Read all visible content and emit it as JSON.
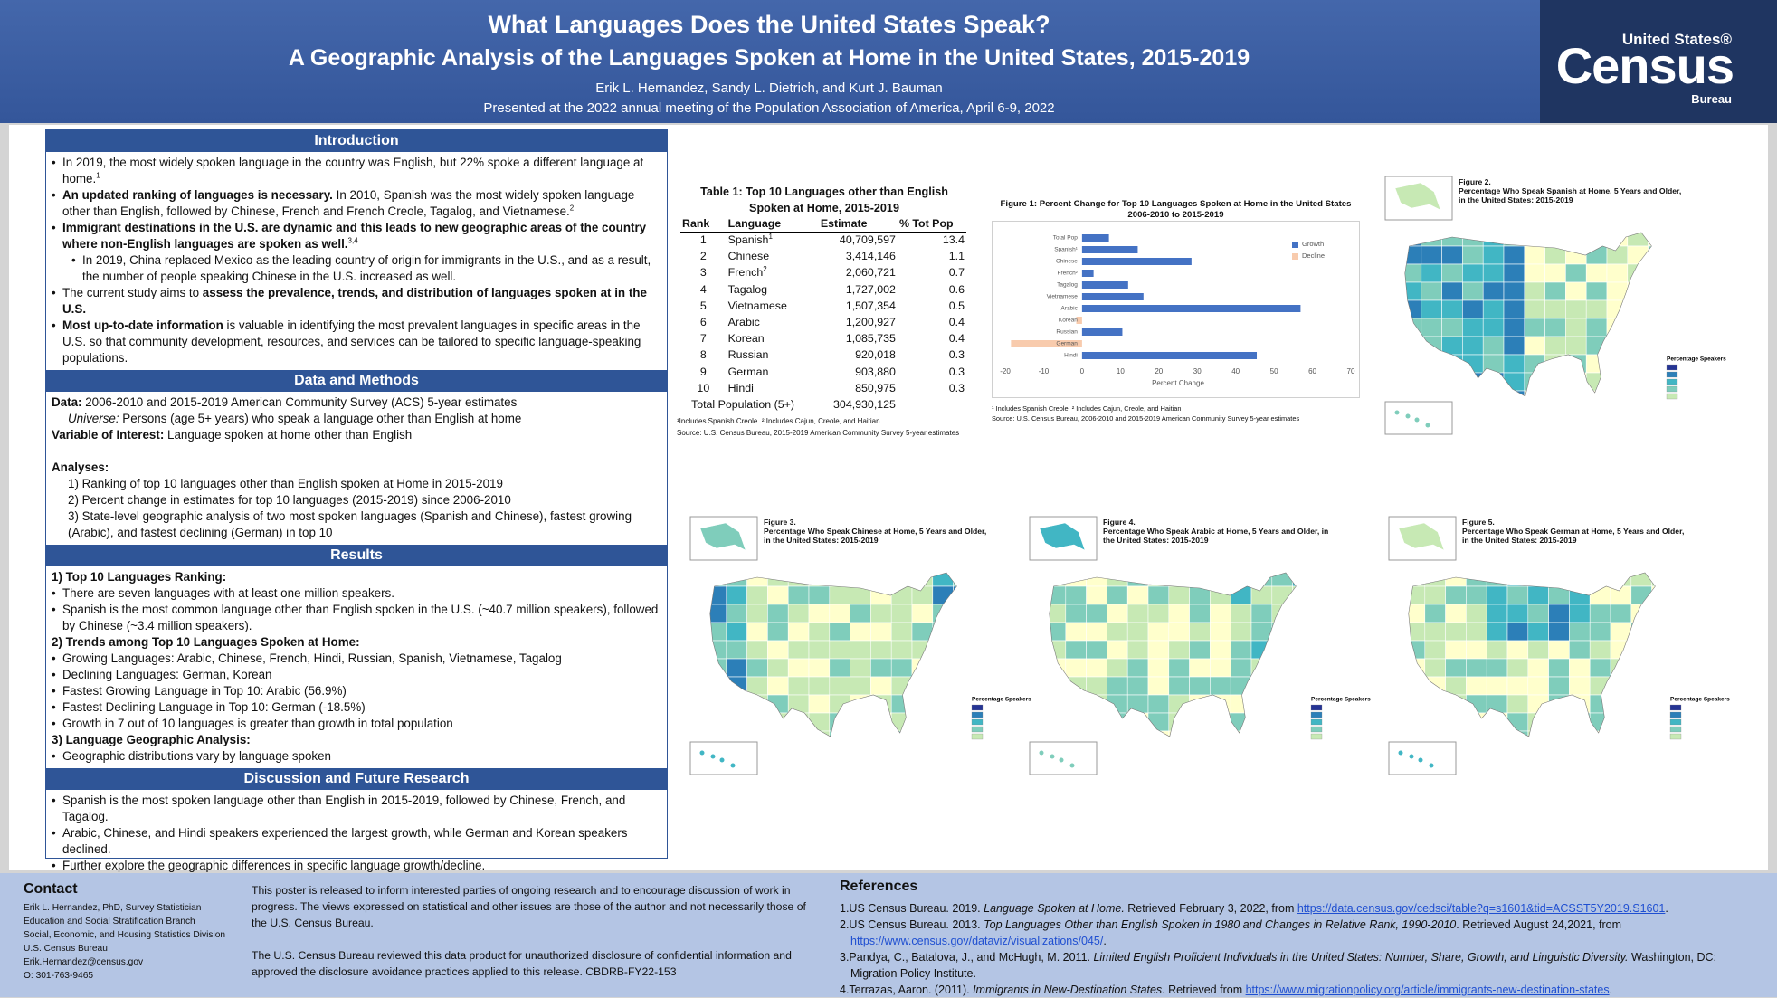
{
  "header": {
    "title": "What Languages Does the United States Speak?",
    "subtitle": "A Geographic Analysis of the Languages Spoken at Home in the United States, 2015-2019",
    "authors": "Erik L. Hernandez, Sandy L. Dietrich, and Kurt J. Bauman",
    "presented": "Presented at the 2022 annual meeting of the Population Association of America, April 6-9, 2022",
    "logo": {
      "top": "United States®",
      "main": "Census",
      "bottom": "Bureau"
    }
  },
  "sections": [
    {
      "heading": "Introduction",
      "items": [
        {
          "bullet": true,
          "indent": 0,
          "segs": [
            {
              "t": "In 2019, the most widely spoken language in the country was English, but 22% spoke a different language at home."
            },
            {
              "t": "1",
              "s": "sup"
            }
          ]
        },
        {
          "bullet": true,
          "indent": 0,
          "segs": [
            {
              "t": "An updated ranking of languages is necessary.",
              "s": "b"
            },
            {
              "t": " In 2010, Spanish was the most widely spoken language other than English, followed by Chinese, French and French Creole, Tagalog, and Vietnamese."
            },
            {
              "t": "2",
              "s": "sup"
            }
          ]
        },
        {
          "bullet": true,
          "indent": 0,
          "segs": [
            {
              "t": "Immigrant destinations in the U.S. are dynamic and this leads to new geographic areas of the country where non-English languages are spoken as well.",
              "s": "b"
            },
            {
              "t": "3,4",
              "s": "sup"
            }
          ]
        },
        {
          "bullet": true,
          "indent": 1,
          "segs": [
            {
              "t": "In 2019, China replaced Mexico as the leading country of origin for immigrants in the U.S., and as a result, the number of people speaking Chinese in the U.S. increased as well."
            }
          ]
        },
        {
          "bullet": true,
          "indent": 0,
          "segs": [
            {
              "t": "The current study aims to "
            },
            {
              "t": "assess the prevalence, trends, and distribution of languages spoken at in the U.S.",
              "s": "b"
            }
          ]
        },
        {
          "bullet": true,
          "indent": 0,
          "segs": [
            {
              "t": "Most up-to-date information",
              "s": "b"
            },
            {
              "t": " is valuable in identifying the most prevalent languages in specific areas in the U.S. so that community development, resources, and services can be tailored to specific language-speaking populations."
            }
          ]
        }
      ]
    },
    {
      "heading": "Data and Methods",
      "items": [
        {
          "bullet": false,
          "indent": 0,
          "segs": [
            {
              "t": "Data:",
              "s": "b"
            },
            {
              "t": " 2006-2010 and 2015-2019 American Community Survey (ACS) 5-year estimates"
            }
          ]
        },
        {
          "bullet": false,
          "indent": 1,
          "segs": [
            {
              "t": "Universe:",
              "s": "i"
            },
            {
              "t": " Persons (age 5+ years) who speak a language other than English at home"
            }
          ]
        },
        {
          "bullet": false,
          "indent": 0,
          "segs": [
            {
              "t": "Variable of Interest:",
              "s": "b"
            },
            {
              "t": " Language spoken at home other than English"
            }
          ]
        },
        {
          "bullet": false,
          "indent": 0,
          "gap": true,
          "segs": [
            {
              "t": "Analyses:",
              "s": "b"
            }
          ]
        },
        {
          "bullet": false,
          "indent": 1,
          "segs": [
            {
              "t": "1) Ranking of top 10 languages other than English spoken at Home in 2015-2019"
            }
          ]
        },
        {
          "bullet": false,
          "indent": 1,
          "segs": [
            {
              "t": "2) Percent change in estimates for top 10 languages (2015-2019) since 2006-2010"
            }
          ]
        },
        {
          "bullet": false,
          "indent": 1,
          "segs": [
            {
              "t": "3) State-level geographic analysis of two most spoken languages (Spanish and Chinese), fastest growing (Arabic), and fastest declining (German) in top 10"
            }
          ]
        }
      ]
    },
    {
      "heading": "Results",
      "items": [
        {
          "bullet": false,
          "indent": 0,
          "segs": [
            {
              "t": "1) Top 10 Languages Ranking:",
              "s": "b"
            }
          ]
        },
        {
          "bullet": true,
          "indent": 0,
          "segs": [
            {
              "t": "There are seven languages with at least one million speakers."
            }
          ]
        },
        {
          "bullet": true,
          "indent": 0,
          "segs": [
            {
              "t": "Spanish is the most common language other than English spoken in the U.S. (~40.7 million speakers), followed by Chinese (~3.4 million speakers)."
            }
          ]
        },
        {
          "bullet": false,
          "indent": 0,
          "segs": [
            {
              "t": "2) Trends among Top 10 Languages Spoken at Home:",
              "s": "b"
            }
          ]
        },
        {
          "bullet": true,
          "indent": 0,
          "segs": [
            {
              "t": "Growing Languages: Arabic, Chinese, French, Hindi, Russian, Spanish, Vietnamese, Tagalog"
            }
          ]
        },
        {
          "bullet": true,
          "indent": 0,
          "segs": [
            {
              "t": "Declining Languages: German, Korean"
            }
          ]
        },
        {
          "bullet": true,
          "indent": 0,
          "segs": [
            {
              "t": "Fastest Growing Language in Top 10: Arabic (56.9%)"
            }
          ]
        },
        {
          "bullet": true,
          "indent": 0,
          "segs": [
            {
              "t": "Fastest Declining Language in Top 10: German (-18.5%)"
            }
          ]
        },
        {
          "bullet": true,
          "indent": 0,
          "segs": [
            {
              "t": "Growth in 7 out of 10 languages is greater than growth in total population"
            }
          ]
        },
        {
          "bullet": false,
          "indent": 0,
          "segs": [
            {
              "t": "3) Language Geographic Analysis:",
              "s": "b"
            }
          ]
        },
        {
          "bullet": true,
          "indent": 0,
          "segs": [
            {
              "t": "Geographic distributions vary by language spoken"
            }
          ]
        }
      ]
    },
    {
      "heading": "Discussion and Future Research",
      "items": [
        {
          "bullet": true,
          "indent": 0,
          "segs": [
            {
              "t": "Spanish is the most spoken language other than English in 2015-2019, followed by Chinese, French, and Tagalog."
            }
          ]
        },
        {
          "bullet": true,
          "indent": 0,
          "segs": [
            {
              "t": "Arabic, Chinese, and Hindi speakers experienced the largest growth, while German and Korean speakers declined."
            }
          ]
        },
        {
          "bullet": true,
          "indent": 0,
          "segs": [
            {
              "t": "Further explore the geographic differences in specific language growth/decline."
            }
          ]
        }
      ]
    }
  ],
  "table": {
    "title": "Table 1: Top 10 Languages other than English Spoken at Home, 2015-2019",
    "columns": [
      "Rank",
      "Language",
      "Estimate",
      "% Tot Pop"
    ],
    "rows": [
      {
        "rank": 1,
        "language": "Spanish",
        "sup": "1",
        "estimate": "40,709,597",
        "pct": 13.4
      },
      {
        "rank": 2,
        "language": "Chinese",
        "estimate": "3,414,146",
        "pct": 1.1
      },
      {
        "rank": 3,
        "language": "French",
        "sup": "2",
        "estimate": "2,060,721",
        "pct": 0.7
      },
      {
        "rank": 4,
        "language": "Tagalog",
        "estimate": "1,727,002",
        "pct": 0.6
      },
      {
        "rank": 5,
        "language": "Vietnamese",
        "estimate": "1,507,354",
        "pct": 0.5
      },
      {
        "rank": 6,
        "language": "Arabic",
        "estimate": "1,200,927",
        "pct": 0.4
      },
      {
        "rank": 7,
        "language": "Korean",
        "estimate": "1,085,735",
        "pct": 0.4
      },
      {
        "rank": 8,
        "language": "Russian",
        "estimate": "920,018",
        "pct": 0.3
      },
      {
        "rank": 9,
        "language": "German",
        "estimate": "903,880",
        "pct": 0.3
      },
      {
        "rank": 10,
        "language": "Hindi",
        "estimate": "850,975",
        "pct": 0.3
      }
    ],
    "total": {
      "label": "Total Population (5+)",
      "estimate": "304,930,125"
    },
    "notes": [
      "¹Includes Spanish Creole. ² Includes Cajun, Creole, and Haitian",
      "Source: U.S. Census Bureau, 2015-2019 American Community Survey 5-year estimates"
    ]
  },
  "chart_data": {
    "type": "barh",
    "title": "Figure 1: Percent Change for Top 10 Languages Spoken at Home in the United States 2006-2010 to 2015-2019",
    "xlabel": "Percent Change",
    "categories": [
      "Total Pop",
      "Spanish¹",
      "Chinese",
      "French²",
      "Tagalog",
      "Vietnamese",
      "Arabic",
      "Korean",
      "Russian",
      "German",
      "Hindi"
    ],
    "values": [
      7,
      14.5,
      28.5,
      3,
      12,
      16,
      56.9,
      -1.5,
      10.5,
      -18.5,
      45.5
    ],
    "colors": [
      "#4472c4",
      "#4472c4",
      "#4472c4",
      "#4472c4",
      "#4472c4",
      "#4472c4",
      "#4472c4",
      "#f8cbad",
      "#4472c4",
      "#f8cbad",
      "#4472c4"
    ],
    "xlim": [
      -20,
      70
    ],
    "xticks": [
      -20,
      -10,
      0,
      10,
      20,
      30,
      40,
      50,
      60,
      70
    ],
    "grid": false,
    "legend": {
      "position": "upper-right",
      "entries": [
        {
          "name": "Growth",
          "color": "#4472c4"
        },
        {
          "name": "Decline",
          "color": "#f8cbad"
        }
      ]
    },
    "notes": [
      "¹ Includes Spanish Creole. ² Includes Cajun, Creole, and Haitian",
      "Source: U.S. Census Bureau, 2006-2010 and 2015-2019 American Community Survey 5-year estimates"
    ]
  },
  "maps": [
    {
      "figure": "Figure 2.",
      "caption": "Percentage Who Speak Spanish at Home, 5 Years and Older, in the United States: 2015-2019",
      "legend_title": "Percentage Speakers"
    },
    {
      "figure": "Figure 3.",
      "caption": "Percentage Who Speak Chinese at Home, 5 Years and Older, in the United States: 2015-2019",
      "legend_title": "Percentage Speakers"
    },
    {
      "figure": "Figure 4.",
      "caption": "Percentage Who Speak Arabic at Home, 5 Years and Older, in the United States: 2015-2019",
      "legend_title": "Percentage Speakers"
    },
    {
      "figure": "Figure 5.",
      "caption": "Percentage Who Speak German at Home, 5 Years and Older, in the United States: 2015-2019",
      "legend_title": "Percentage Speakers"
    }
  ],
  "footer": {
    "contact": {
      "heading": "Contact",
      "lines": [
        "Erik L. Hernandez, PhD, Survey Statistician",
        "Education and Social Stratification Branch",
        "Social, Economic, and Housing Statistics Division",
        "U.S. Census Bureau",
        "Erik.Hernandez@census.gov",
        "O: 301-763-9465"
      ]
    },
    "disclaimer": [
      "This poster is released to inform interested parties of ongoing research and to encourage discussion of work in progress. The views expressed on statistical and other issues are those of the author and not necessarily those of the U.S. Census Bureau.",
      "The U.S. Census Bureau reviewed this data product for unauthorized disclosure of confidential information and approved the disclosure avoidance practices applied to this release. CBDRB-FY22-153"
    ],
    "references": {
      "heading": "References",
      "items": [
        {
          "segs": [
            {
              "t": "1.US Census Bureau. 2019. "
            },
            {
              "t": "Language Spoken at Home.",
              "s": "i"
            },
            {
              "t": " Retrieved February 3, 2022, from "
            },
            {
              "t": "https://data.census.gov/cedsci/table?q=s1601&tid=ACSST5Y2019.S1601",
              "s": "a"
            },
            {
              "t": "."
            }
          ]
        },
        {
          "segs": [
            {
              "t": "2.US Census Bureau. 2013. "
            },
            {
              "t": "Top Languages Other than English Spoken in 1980 and Changes in Relative Rank, 1990-2010",
              "s": "i"
            },
            {
              "t": ". Retrieved August 24,2021, from "
            },
            {
              "t": "https://www.census.gov/dataviz/visualizations/045/",
              "s": "a"
            },
            {
              "t": "."
            }
          ]
        },
        {
          "segs": [
            {
              "t": "3.Pandya, C., Batalova, J., and McHugh, M. 2011. "
            },
            {
              "t": "Limited English Proficient Individuals in the United States: Number, Share, Growth, and Linguistic Diversity.",
              "s": "i"
            },
            {
              "t": " Washington, DC: Migration Policy Institute."
            }
          ]
        },
        {
          "segs": [
            {
              "t": "4.Terrazas, Aaron. (2011). "
            },
            {
              "t": "Immigrants in New-Destination States",
              "s": "i"
            },
            {
              "t": ". Retrieved from "
            },
            {
              "t": "https://www.migrationpolicy.org/article/immigrants-new-destination-states",
              "s": "a"
            },
            {
              "t": "."
            }
          ]
        }
      ]
    }
  }
}
